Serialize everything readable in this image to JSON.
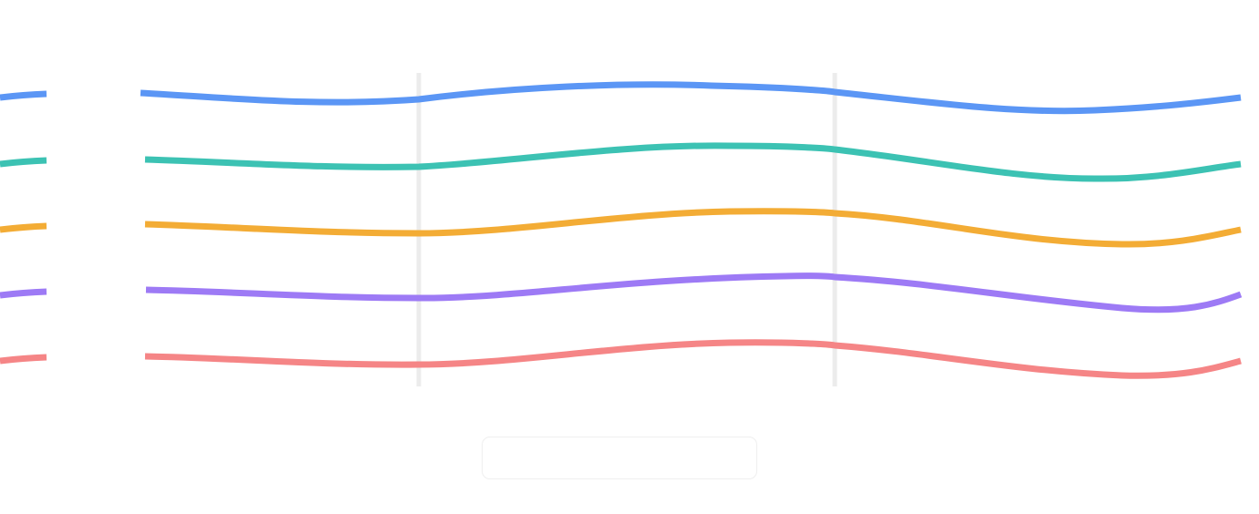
{
  "waves": [
    {
      "name": "",
      "color": "#5b96f5"
    },
    {
      "name": "",
      "color": "#3cc2b3"
    },
    {
      "name": "",
      "color": "#f3ac35"
    },
    {
      "name": "",
      "color": "#9d7af5"
    },
    {
      "name": "",
      "color": "#f58586"
    }
  ],
  "dividers": {
    "color": "#ececec",
    "count": 2
  },
  "control": {
    "label": ""
  }
}
